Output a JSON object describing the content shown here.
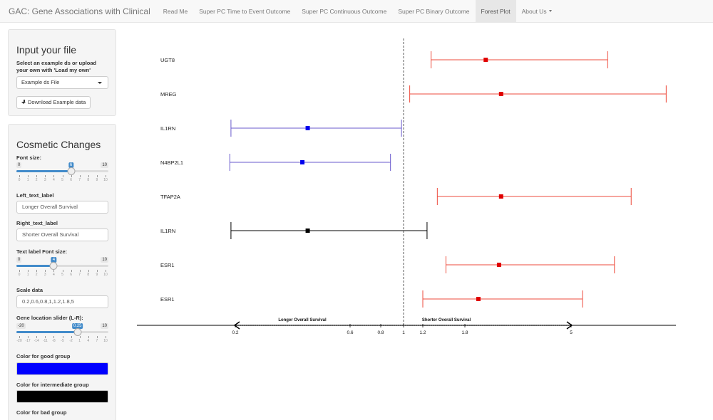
{
  "navbar": {
    "brand": "GAC: Gene Associations with Clinical",
    "items": [
      {
        "label": "Read Me",
        "active": false
      },
      {
        "label": "Super PC Time to Event Outcome",
        "active": false
      },
      {
        "label": "Super PC Continuous Outcome",
        "active": false
      },
      {
        "label": "Super PC Binary Outcome",
        "active": false
      },
      {
        "label": "Forest Plot",
        "active": true
      },
      {
        "label": "About Us",
        "active": false,
        "dropdown": true
      }
    ]
  },
  "input_panel": {
    "title": "Input your file",
    "instructions": "Select an example ds or upload your own with 'Load my own'",
    "select_value": "Example ds File",
    "download_button": "Download Example data"
  },
  "cosmetic_panel": {
    "title": "Cosmetic Changes",
    "font_size": {
      "label": "Font size:",
      "min": 0,
      "max": 10,
      "value": 6,
      "tick_labels": [
        "0",
        "1",
        "2",
        "3",
        "4",
        "5",
        "6",
        "7",
        "8",
        "9",
        "10"
      ]
    },
    "left_text_label": {
      "label": "Left_text_label",
      "value": "Longer Overall Survival"
    },
    "right_text_label": {
      "label": "Right_text_label",
      "value": "Shorter Overall Survival"
    },
    "text_label_font_size": {
      "label": "Text label Font size:",
      "min": 0,
      "max": 10,
      "value": 4,
      "tick_labels": [
        "0",
        "1",
        "2",
        "3",
        "4",
        "5",
        "6",
        "7",
        "8",
        "9",
        "10"
      ]
    },
    "scale_data": {
      "label": "Scale data",
      "value": "0.2,0.6,0.8,1,1.2,1.8,5"
    },
    "gene_location": {
      "label": "Gene location slider (L-R):",
      "min": -20,
      "max": 10,
      "value": 0.25,
      "display_min": "-20",
      "display_max": "10",
      "display_value": "0.25",
      "tick_labels": [
        "-20",
        "-17",
        "-14",
        "-11",
        "-8",
        "-5",
        "-2",
        "1",
        "4",
        "7",
        "10"
      ]
    },
    "good_color": {
      "label": "Color for good group",
      "color": "#0000ff"
    },
    "intermediate_color": {
      "label": "Color for intermediate group",
      "color": "#000000"
    },
    "bad_color": {
      "label": "Color for bad group"
    }
  },
  "chart_data": {
    "type": "forest",
    "xscale": "log",
    "reference_line": 1,
    "ticks": [
      0.2,
      0.6,
      0.8,
      1,
      1.2,
      1.8,
      5
    ],
    "tick_labels": [
      "0.2",
      "0.6",
      "0.8",
      "1",
      "1.2",
      "1.8",
      "5"
    ],
    "left_label": "Longer Overall Survival",
    "right_label": "Shorter Overall Survival",
    "rows": [
      {
        "gene": "UGT8",
        "estimate": 2.2,
        "lower": 1.3,
        "upper": 6.4,
        "color": "#ee4b3c",
        "marker": "#e00000"
      },
      {
        "gene": "MREG",
        "estimate": 2.55,
        "lower": 1.06,
        "upper": 9.5,
        "color": "#ee4b3c",
        "marker": "#e00000"
      },
      {
        "gene": "IL1RN",
        "estimate": 0.4,
        "lower": 0.18,
        "upper": 0.98,
        "color": "#6a5acd",
        "marker": "#0000ee"
      },
      {
        "gene": "N4BP2L1",
        "estimate": 0.38,
        "lower": 0.175,
        "upper": 0.88,
        "color": "#6a5acd",
        "marker": "#0000ee"
      },
      {
        "gene": "TFAP2A",
        "estimate": 2.55,
        "lower": 1.38,
        "upper": 7.5,
        "color": "#ee4b3c",
        "marker": "#e00000"
      },
      {
        "gene": "IL1RN",
        "estimate": 0.4,
        "lower": 0.18,
        "upper": 1.25,
        "color": "#000000",
        "marker": "#000000"
      },
      {
        "gene": "ESR1",
        "estimate": 2.5,
        "lower": 1.5,
        "upper": 6.7,
        "color": "#ee4b3c",
        "marker": "#e00000"
      },
      {
        "gene": "ESR1",
        "estimate": 2.05,
        "lower": 1.2,
        "upper": 5.4,
        "color": "#ee4b3c",
        "marker": "#e00000"
      }
    ]
  }
}
